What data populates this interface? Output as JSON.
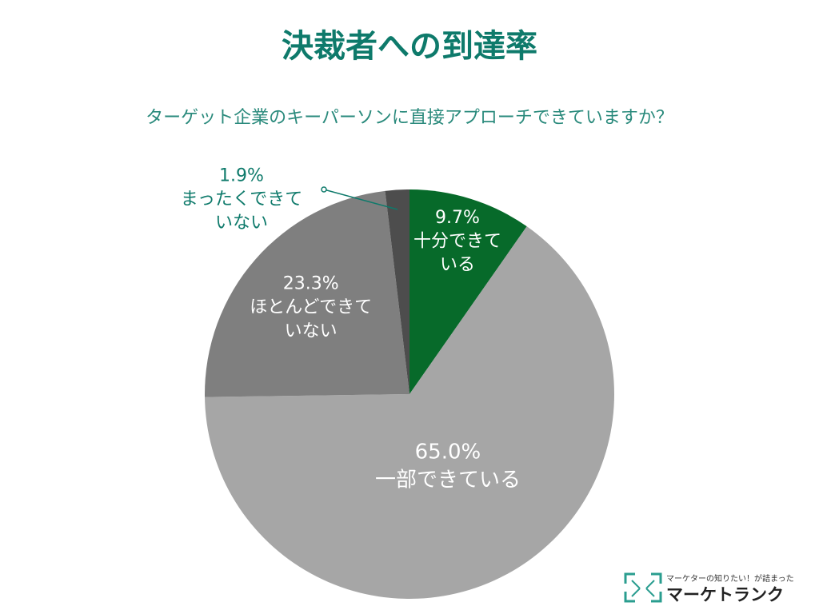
{
  "chart_data": {
    "type": "pie",
    "title": "決裁者への到達率",
    "subtitle": "ターゲット企業のキーパーソンに直接アプローチできていますか？",
    "categories": [
      "十分できている",
      "一部できている",
      "ほとんどできていない",
      "まったくできていない"
    ],
    "values": [
      9.7,
      65.0,
      23.3,
      1.9
    ],
    "value_labels": [
      "9.7%",
      "65.0%",
      "23.3%",
      "1.9%"
    ],
    "colors": [
      "#076a2a",
      "#a6a6a6",
      "#7f7f7f",
      "#4d4d4d"
    ]
  },
  "logo": {
    "tagline": "マーケターの知りたい！が詰まった",
    "name": "マーケトランク"
  }
}
